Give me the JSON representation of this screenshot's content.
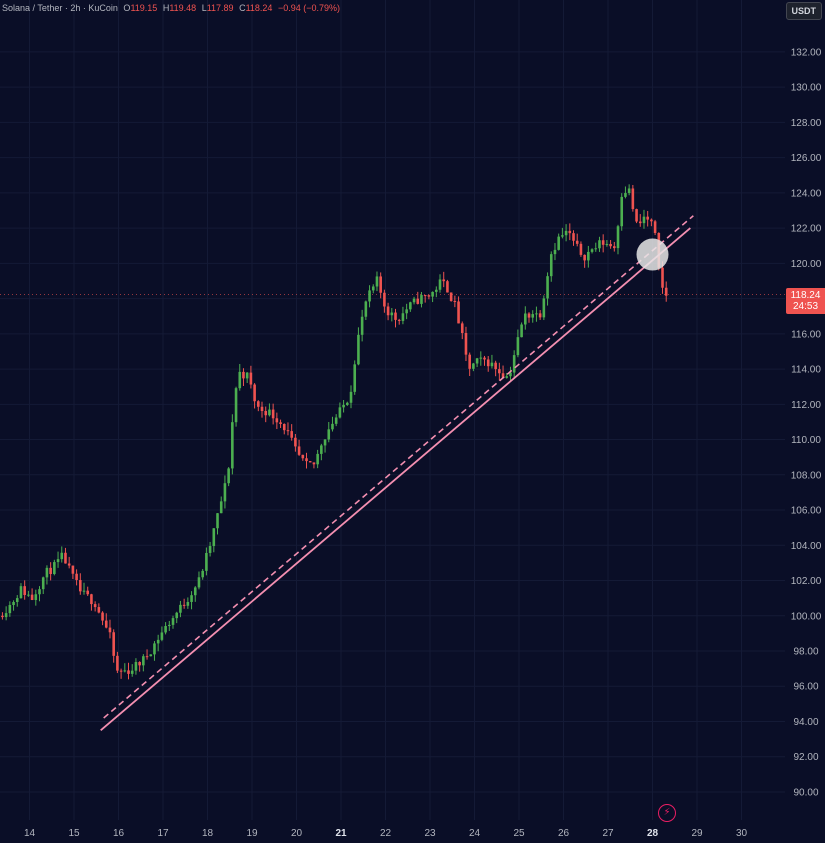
{
  "header": {
    "symbol_title": "Solana / Tether · 2h · KuCoin",
    "ohlc": [
      {
        "label": "O",
        "value": "119.15"
      },
      {
        "label": "H",
        "value": "119.48"
      },
      {
        "label": "L",
        "value": "117.89"
      },
      {
        "label": "C",
        "value": "118.24"
      }
    ],
    "change": "−0.94 (−0.79%)"
  },
  "currency_label": "USDT",
  "last_price": {
    "value": "118.24",
    "countdown": "24:53"
  },
  "colors": {
    "background": "#0a0e27",
    "up": "#26a69a",
    "up_body": "#4caf50",
    "down": "#ef5350",
    "trendline": "#f48fb1",
    "axis_text": "#b2b5be"
  },
  "chart_data": {
    "type": "candlestick",
    "title": "",
    "xlabel": "",
    "ylabel": "",
    "ylim": [
      88.6,
      134.2
    ],
    "xlim": [
      13.35,
      30.7
    ],
    "y_ticks": [
      "132.00",
      "130.00",
      "128.00",
      "126.00",
      "124.00",
      "122.00",
      "120.00",
      "118.00",
      "116.00",
      "114.00",
      "112.00",
      "110.00",
      "108.00",
      "106.00",
      "104.00",
      "102.00",
      "100.00",
      "98.00",
      "96.00",
      "94.00",
      "92.00",
      "90.00"
    ],
    "x_ticks": [
      {
        "label": "14",
        "day": 14
      },
      {
        "label": "15",
        "day": 15
      },
      {
        "label": "16",
        "day": 16
      },
      {
        "label": "17",
        "day": 17
      },
      {
        "label": "18",
        "day": 18
      },
      {
        "label": "19",
        "day": 19
      },
      {
        "label": "20",
        "day": 20
      },
      {
        "label": "21",
        "day": 21
      },
      {
        "label": "22",
        "day": 22
      },
      {
        "label": "23",
        "day": 23
      },
      {
        "label": "24",
        "day": 24
      },
      {
        "label": "25",
        "day": 25
      },
      {
        "label": "26",
        "day": 26
      },
      {
        "label": "27",
        "day": 27
      },
      {
        "label": "28",
        "day": 28
      },
      {
        "label": "29",
        "day": 29
      },
      {
        "label": "30",
        "day": 30
      }
    ],
    "bold_x_ticks": [
      "21",
      "28"
    ],
    "path": [
      [
        13.35,
        100.0
      ],
      [
        13.6,
        100.6
      ],
      [
        13.85,
        101.5
      ],
      [
        14.1,
        101.0
      ],
      [
        14.4,
        102.4
      ],
      [
        14.6,
        102.8
      ],
      [
        14.8,
        103.4
      ],
      [
        14.95,
        102.5
      ],
      [
        15.2,
        101.3
      ],
      [
        15.5,
        100.8
      ],
      [
        15.7,
        99.7
      ],
      [
        15.85,
        98.8
      ],
      [
        16.0,
        96.8
      ],
      [
        16.3,
        96.9
      ],
      [
        16.6,
        97.5
      ],
      [
        16.8,
        98.2
      ],
      [
        17.0,
        99.0
      ],
      [
        17.3,
        100.0
      ],
      [
        17.6,
        101.0
      ],
      [
        17.85,
        102.0
      ],
      [
        18.1,
        104.0
      ],
      [
        18.3,
        106.0
      ],
      [
        18.5,
        108.0
      ],
      [
        18.65,
        112.5
      ],
      [
        18.75,
        113.8
      ],
      [
        18.95,
        113.6
      ],
      [
        19.15,
        111.8
      ],
      [
        19.4,
        111.6
      ],
      [
        19.6,
        111.2
      ],
      [
        19.8,
        110.6
      ],
      [
        20.05,
        109.2
      ],
      [
        20.25,
        108.5
      ],
      [
        20.45,
        108.6
      ],
      [
        20.6,
        109.8
      ],
      [
        20.8,
        110.8
      ],
      [
        21.0,
        111.5
      ],
      [
        21.25,
        112.6
      ],
      [
        21.4,
        115.5
      ],
      [
        21.6,
        117.8
      ],
      [
        21.85,
        119.0
      ],
      [
        22.05,
        117.4
      ],
      [
        22.3,
        116.8
      ],
      [
        22.55,
        117.5
      ],
      [
        22.8,
        118.0
      ],
      [
        23.05,
        118.2
      ],
      [
        23.3,
        119.0
      ],
      [
        23.45,
        118.5
      ],
      [
        23.6,
        117.6
      ],
      [
        23.75,
        116.0
      ],
      [
        23.9,
        114.0
      ],
      [
        24.1,
        114.4
      ],
      [
        24.3,
        114.5
      ],
      [
        24.5,
        114.1
      ],
      [
        24.65,
        113.8
      ],
      [
        24.8,
        113.5
      ],
      [
        24.95,
        115.0
      ],
      [
        25.15,
        117.0
      ],
      [
        25.35,
        117.2
      ],
      [
        25.5,
        117.0
      ],
      [
        25.6,
        118.2
      ],
      [
        25.75,
        120.5
      ],
      [
        25.95,
        121.5
      ],
      [
        26.15,
        121.8
      ],
      [
        26.3,
        121.0
      ],
      [
        26.5,
        120.4
      ],
      [
        26.7,
        120.8
      ],
      [
        26.9,
        121.2
      ],
      [
        27.05,
        121.1
      ],
      [
        27.2,
        120.9
      ],
      [
        27.35,
        124.0
      ],
      [
        27.5,
        124.3
      ],
      [
        27.7,
        122.0
      ],
      [
        27.85,
        122.6
      ],
      [
        28.0,
        122.4
      ],
      [
        28.1,
        121.5
      ],
      [
        28.15,
        120.0
      ],
      [
        28.23,
        118.9
      ],
      [
        28.3,
        118.24
      ]
    ],
    "trendline": {
      "start": {
        "day": 15.6,
        "price": 93.5
      },
      "end": {
        "day": 28.85,
        "price": 122.0
      },
      "offset": 0.7
    },
    "highlight": {
      "day": 28.0,
      "price": 120.5
    }
  }
}
